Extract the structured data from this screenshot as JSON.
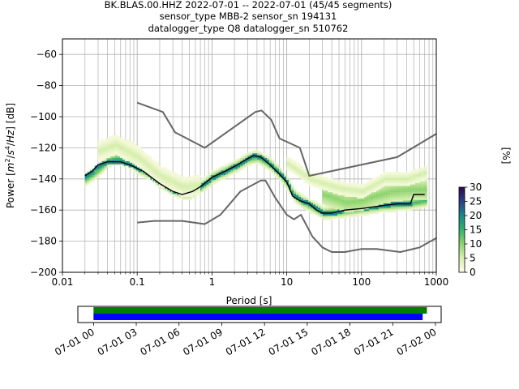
{
  "title": {
    "line1": "BK.BLAS.00.HHZ   2022-07-01 -- 2022-07-01  (45/45 segments)",
    "line2": "sensor_type MBB-2 sensor_sn 194131",
    "line3": "datalogger_type Q8 datalogger_sn 510762"
  },
  "chart_data": [
    {
      "type": "heatmap",
      "xlabel": "Period [s]",
      "ylabel": "Power [m²/s⁴/Hz] [dB]",
      "x_scale": "log",
      "xlim": [
        0.01,
        1000
      ],
      "ylim": [
        -200,
        -50
      ],
      "x_ticks": [
        0.01,
        0.1,
        1,
        10,
        100,
        1000
      ],
      "x_tick_labels": [
        "0.01",
        "0.1",
        "1",
        "10",
        "100",
        "1000"
      ],
      "y_ticks": [
        -200,
        -180,
        -160,
        -140,
        -120,
        -100,
        -80,
        -60
      ],
      "y_tick_labels": [
        "−200",
        "−180",
        "−160",
        "−140",
        "−120",
        "−100",
        "−80",
        "−60"
      ],
      "grid": true,
      "colorbar": {
        "label": "[%]",
        "min": 0,
        "max": 30,
        "ticks": [
          0,
          5,
          10,
          15,
          20,
          25,
          30
        ],
        "tick_labels": [
          "0",
          "5",
          "10",
          "15",
          "20",
          "25",
          "30"
        ],
        "colors": [
          "#fffde8",
          "#d8efb0",
          "#8fd46e",
          "#33b26b",
          "#18888a",
          "#2c3f88",
          "#2a0a4a"
        ]
      },
      "curves": [
        {
          "role": "upper noise model",
          "color": "#666666",
          "points": [
            [
              0.1,
              -91
            ],
            [
              0.22,
              -97
            ],
            [
              0.32,
              -110
            ],
            [
              0.8,
              -120
            ],
            [
              3.8,
              -97
            ],
            [
              4.6,
              -96
            ],
            [
              6.2,
              -102
            ],
            [
              8,
              -114
            ],
            [
              15,
              -120
            ],
            [
              20,
              -138
            ],
            [
              300,
              -126
            ],
            [
              1000,
              -111
            ]
          ]
        },
        {
          "role": "lower noise model",
          "color": "#666666",
          "points": [
            [
              0.1,
              -168
            ],
            [
              0.17,
              -167
            ],
            [
              0.4,
              -167
            ],
            [
              0.8,
              -169
            ],
            [
              1.3,
              -163
            ],
            [
              2.4,
              -148
            ],
            [
              4.5,
              -141
            ],
            [
              5.2,
              -141
            ],
            [
              7,
              -152
            ],
            [
              10,
              -163
            ],
            [
              12.5,
              -166
            ],
            [
              15.5,
              -163
            ],
            [
              22,
              -177
            ],
            [
              30,
              -184
            ],
            [
              40,
              -187
            ],
            [
              60,
              -187
            ],
            [
              100,
              -185
            ],
            [
              160,
              -185
            ],
            [
              330,
              -187
            ],
            [
              600,
              -184
            ],
            [
              1000,
              -178
            ]
          ]
        },
        {
          "role": "mode",
          "color": "#000000",
          "points": [
            [
              0.02,
              -138
            ],
            [
              0.025,
              -135
            ],
            [
              0.03,
              -131
            ],
            [
              0.04,
              -129
            ],
            [
              0.06,
              -129
            ],
            [
              0.08,
              -131
            ],
            [
              0.12,
              -135
            ],
            [
              0.2,
              -143
            ],
            [
              0.3,
              -148
            ],
            [
              0.4,
              -150
            ],
            [
              0.55,
              -148
            ],
            [
              0.7,
              -145
            ],
            [
              1,
              -139
            ],
            [
              1.5,
              -135
            ],
            [
              2,
              -132
            ],
            [
              3,
              -127
            ],
            [
              3.6,
              -125
            ],
            [
              4.5,
              -126
            ],
            [
              6,
              -131
            ],
            [
              8,
              -137
            ],
            [
              10,
              -142
            ],
            [
              12,
              -151
            ],
            [
              15,
              -154
            ],
            [
              20,
              -156
            ],
            [
              25,
              -160
            ],
            [
              30,
              -162
            ],
            [
              40,
              -162
            ],
            [
              60,
              -160
            ],
            [
              100,
              -159
            ],
            [
              200,
              -157
            ],
            [
              300,
              -156
            ],
            [
              450,
              -156
            ],
            [
              500,
              -150
            ],
            [
              700,
              -150
            ]
          ]
        }
      ],
      "density_bands": [
        {
          "label": "scatter",
          "points": [
            [
              0.02,
              -140,
              4
            ],
            [
              0.025,
              -137,
              4
            ],
            [
              0.03,
              -134,
              4
            ],
            [
              0.035,
              -131,
              4
            ],
            [
              0.04,
              -128,
              4
            ],
            [
              0.05,
              -127,
              4
            ],
            [
              0.06,
              -127,
              4
            ],
            [
              0.08,
              -129,
              4
            ],
            [
              0.1,
              -133,
              4
            ],
            [
              0.15,
              -137,
              4
            ],
            [
              0.2,
              -142,
              4
            ],
            [
              0.3,
              -147,
              4
            ],
            [
              0.4,
              -149,
              4
            ],
            [
              0.5,
              -149,
              4
            ],
            [
              0.7,
              -145,
              4
            ],
            [
              1,
              -139,
              4
            ],
            [
              1.5,
              -135,
              4
            ],
            [
              2,
              -132,
              4
            ],
            [
              3,
              -127,
              4
            ],
            [
              4,
              -126,
              4
            ],
            [
              6,
              -131,
              4
            ],
            [
              8,
              -137,
              4
            ],
            [
              10,
              -143,
              4
            ],
            [
              12,
              -150,
              4
            ],
            [
              15,
              -154,
              4
            ],
            [
              20,
              -157,
              4
            ],
            [
              30,
              -162,
              4
            ],
            [
              50,
              -161,
              4
            ],
            [
              100,
              -159,
              4
            ],
            [
              200,
              -157,
              4
            ],
            [
              400,
              -156,
              4
            ],
            [
              700,
              -154,
              4
            ]
          ]
        },
        {
          "label": "upper branch",
          "points": [
            [
              0.03,
              -124,
              4
            ],
            [
              0.05,
              -120,
              4
            ],
            [
              0.07,
              -119,
              4
            ],
            [
              0.1,
              -123,
              4
            ],
            [
              0.15,
              -133,
              4
            ],
            [
              0.2,
              -139,
              4
            ],
            [
              0.3,
              -144,
              4
            ],
            [
              0.4,
              -146,
              4
            ]
          ]
        },
        {
          "label": "secondary upper branch",
          "points": [
            [
              0.03,
              -122,
              6
            ],
            [
              0.05,
              -118,
              6
            ],
            [
              0.1,
              -126,
              6
            ],
            [
              0.2,
              -138,
              6
            ],
            [
              0.4,
              -145,
              6
            ],
            [
              0.7,
              -144,
              6
            ]
          ]
        },
        {
          "label": "long-period spread",
          "points": [
            [
              30,
              -150,
              6
            ],
            [
              60,
              -155,
              6
            ],
            [
              100,
              -154,
              6
            ],
            [
              150,
              -151,
              6
            ],
            [
              250,
              -148,
              6
            ],
            [
              450,
              -147,
              6
            ],
            [
              700,
              -147,
              6
            ]
          ]
        },
        {
          "label": "faint long-period trace",
          "points": [
            [
              10,
              -130,
              4
            ],
            [
              20,
              -140,
              4
            ],
            [
              50,
              -146,
              4
            ],
            [
              100,
              -148,
              4
            ],
            [
              200,
              -140,
              4
            ],
            [
              400,
              -140,
              4
            ],
            [
              700,
              -136,
              4
            ]
          ]
        }
      ]
    },
    {
      "type": "bar",
      "description_role": "data availability timeline",
      "x_tick_labels": [
        "07-01 00",
        "07-01 03",
        "07-01 06",
        "07-01 09",
        "07-01 12",
        "07-01 15",
        "07-01 18",
        "07-01 21",
        "07-02 00"
      ],
      "x_ticks_hours": [
        0,
        3,
        6,
        9,
        12,
        15,
        18,
        21,
        24
      ],
      "xlim_hours": [
        -1.1,
        24.4
      ],
      "series": [
        {
          "color": "#008000",
          "start_hours": 0,
          "end_hours": 23.4
        },
        {
          "color": "#0000ff",
          "start_hours": 0,
          "end_hours": 23.1
        }
      ]
    }
  ]
}
